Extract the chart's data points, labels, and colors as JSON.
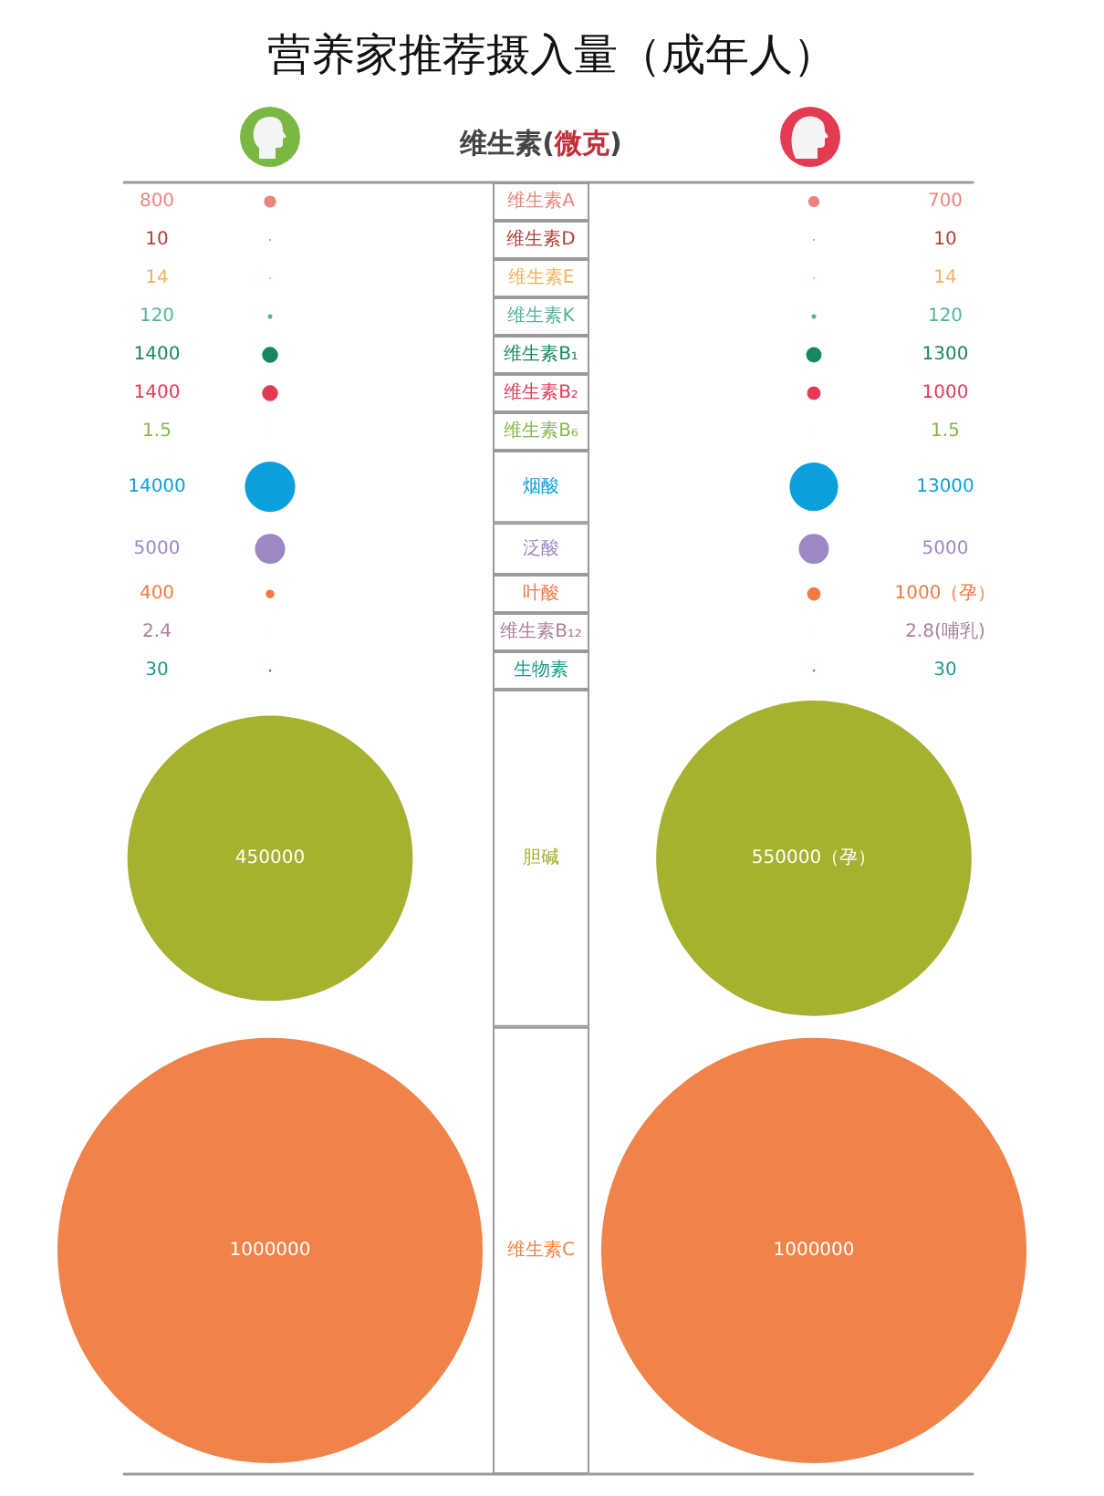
{
  "chart_data": {
    "type": "other",
    "title": "营养家推荐摄入量（成年人）",
    "ylabel": "维生素(微克)",
    "categories": [
      "维生素A",
      "维生素D",
      "维生素E",
      "维生素K",
      "维生素B₁",
      "维生素B₂",
      "维生素B₆",
      "烟酸",
      "泛酸",
      "叶酸",
      "维生素B₁₂",
      "生物素",
      "胆碱",
      "维生素C"
    ],
    "series": [
      {
        "values": [
          800,
          10,
          14,
          120,
          1400,
          1400,
          1.5,
          14000,
          5000,
          400,
          2.4,
          30,
          450000,
          1000000
        ],
        "value_labels": [
          "800",
          "10",
          "14",
          "120",
          "1400",
          "1400",
          "1.5",
          "14000",
          "5000",
          "400",
          "2.4",
          "30",
          "450000",
          "1000000"
        ],
        "colors": [
          "#e8857d",
          "#b0403a",
          "#f0b35e",
          "#55b39b",
          "#17885c",
          "#e23a55",
          "#86b84a",
          "#0ba0dc",
          "#9d88c4",
          "#f07a44",
          "#a8809a",
          "#1a9a8c",
          "#a5b12f",
          "#f0834a"
        ]
      },
      {
        "values": [
          700,
          10,
          14,
          120,
          1300,
          1000,
          1.5,
          13000,
          5000,
          1000,
          2.8,
          30,
          550000,
          1000000
        ],
        "value_labels": [
          "700",
          "10",
          "14",
          "120",
          "1300",
          "1000",
          "1.5",
          "13000",
          "5000",
          "1000（孕）",
          "2.8(哺乳)",
          "30",
          "550000（孕）",
          "1000000"
        ],
        "colors": [
          "#e8857d",
          "#b0403a",
          "#f0b35e",
          "#55b39b",
          "#17885c",
          "#e23a55",
          "#86b84a",
          "#0ba0dc",
          "#9d88c4",
          "#f07a44",
          "#a8809a",
          "#1a9a8c",
          "#a5b12f",
          "#f0834a"
        ]
      }
    ]
  }
}
